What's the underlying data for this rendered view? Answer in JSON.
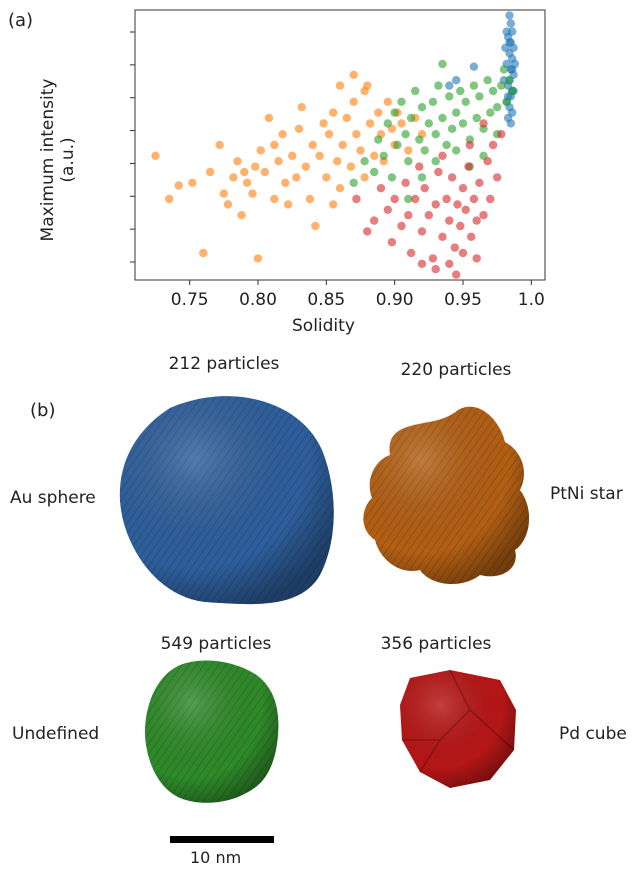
{
  "panel_a_label": "(a)",
  "panel_b_label": "(b)",
  "chart_data": {
    "type": "scatter",
    "xlabel": "Solidity",
    "ylabel": "Maximum intensity (a.u.)",
    "xlim": [
      0.71,
      1.01
    ],
    "ylim": [
      0,
      100
    ],
    "x_ticks": [
      "0.75",
      "0.80",
      "0.85",
      "0.90",
      "0.95",
      "1.0"
    ],
    "x_tick_values": [
      0.75,
      0.8,
      0.85,
      0.9,
      0.95,
      1.0
    ],
    "y_tick_count": 8,
    "y_tick_labels_shown": false,
    "grid": false,
    "series": [
      {
        "color": "#1f77b4",
        "points": [
          [
            0.984,
            98
          ],
          [
            0.985,
            95
          ],
          [
            0.986,
            92
          ],
          [
            0.983,
            90
          ],
          [
            0.985,
            88
          ],
          [
            0.987,
            86
          ],
          [
            0.984,
            84
          ],
          [
            0.986,
            82
          ],
          [
            0.982,
            80
          ],
          [
            0.985,
            78
          ],
          [
            0.987,
            76
          ],
          [
            0.984,
            74
          ],
          [
            0.983,
            72
          ],
          [
            0.986,
            70
          ],
          [
            0.985,
            68
          ],
          [
            0.982,
            66
          ],
          [
            0.984,
            64
          ],
          [
            0.986,
            62
          ],
          [
            0.983,
            60
          ],
          [
            0.985,
            58
          ],
          [
            0.981,
            86
          ],
          [
            0.988,
            80
          ],
          [
            0.98,
            74
          ],
          [
            0.987,
            70
          ],
          [
            0.982,
            92
          ],
          [
            0.984,
            88
          ],
          [
            0.986,
            78
          ],
          [
            0.983,
            68
          ],
          [
            0.958,
            79
          ],
          [
            0.945,
            74
          ],
          [
            0.94,
            72
          ]
        ]
      },
      {
        "color": "#ff7f0e",
        "points": [
          [
            0.725,
            46
          ],
          [
            0.735,
            30
          ],
          [
            0.742,
            35
          ],
          [
            0.752,
            36
          ],
          [
            0.76,
            10
          ],
          [
            0.765,
            40
          ],
          [
            0.772,
            50
          ],
          [
            0.775,
            32
          ],
          [
            0.778,
            28
          ],
          [
            0.782,
            38
          ],
          [
            0.785,
            44
          ],
          [
            0.788,
            24
          ],
          [
            0.79,
            40
          ],
          [
            0.792,
            36
          ],
          [
            0.796,
            32
          ],
          [
            0.8,
            8
          ],
          [
            0.802,
            48
          ],
          [
            0.805,
            40
          ],
          [
            0.808,
            60
          ],
          [
            0.812,
            30
          ],
          [
            0.815,
            44
          ],
          [
            0.818,
            54
          ],
          [
            0.82,
            36
          ],
          [
            0.822,
            28
          ],
          [
            0.825,
            46
          ],
          [
            0.828,
            38
          ],
          [
            0.83,
            56
          ],
          [
            0.832,
            64
          ],
          [
            0.835,
            42
          ],
          [
            0.838,
            30
          ],
          [
            0.84,
            50
          ],
          [
            0.842,
            20
          ],
          [
            0.845,
            46
          ],
          [
            0.848,
            58
          ],
          [
            0.85,
            38
          ],
          [
            0.852,
            54
          ],
          [
            0.855,
            62
          ],
          [
            0.858,
            44
          ],
          [
            0.86,
            34
          ],
          [
            0.862,
            50
          ],
          [
            0.865,
            60
          ],
          [
            0.868,
            42
          ],
          [
            0.87,
            66
          ],
          [
            0.872,
            54
          ],
          [
            0.875,
            48
          ],
          [
            0.878,
            38
          ],
          [
            0.88,
            72
          ],
          [
            0.882,
            58
          ],
          [
            0.885,
            46
          ],
          [
            0.888,
            62
          ],
          [
            0.89,
            54
          ],
          [
            0.892,
            44
          ],
          [
            0.895,
            66
          ],
          [
            0.898,
            56
          ],
          [
            0.9,
            50
          ],
          [
            0.902,
            62
          ],
          [
            0.905,
            58
          ],
          [
            0.91,
            48
          ],
          [
            0.915,
            60
          ],
          [
            0.92,
            54
          ],
          [
            0.87,
            76
          ],
          [
            0.878,
            70
          ],
          [
            0.86,
            72
          ],
          [
            0.855,
            28
          ],
          [
            0.798,
            42
          ],
          [
            0.812,
            50
          ]
        ]
      },
      {
        "color": "#2ca02c",
        "points": [
          [
            0.87,
            36
          ],
          [
            0.878,
            44
          ],
          [
            0.885,
            40
          ],
          [
            0.888,
            52
          ],
          [
            0.892,
            46
          ],
          [
            0.895,
            58
          ],
          [
            0.898,
            38
          ],
          [
            0.9,
            62
          ],
          [
            0.902,
            50
          ],
          [
            0.905,
            66
          ],
          [
            0.908,
            54
          ],
          [
            0.91,
            44
          ],
          [
            0.912,
            60
          ],
          [
            0.915,
            70
          ],
          [
            0.918,
            52
          ],
          [
            0.92,
            64
          ],
          [
            0.922,
            48
          ],
          [
            0.925,
            58
          ],
          [
            0.928,
            66
          ],
          [
            0.93,
            54
          ],
          [
            0.932,
            72
          ],
          [
            0.935,
            60
          ],
          [
            0.938,
            50
          ],
          [
            0.94,
            68
          ],
          [
            0.942,
            56
          ],
          [
            0.945,
            62
          ],
          [
            0.948,
            70
          ],
          [
            0.95,
            58
          ],
          [
            0.952,
            66
          ],
          [
            0.955,
            52
          ],
          [
            0.958,
            72
          ],
          [
            0.96,
            60
          ],
          [
            0.962,
            68
          ],
          [
            0.965,
            56
          ],
          [
            0.968,
            74
          ],
          [
            0.97,
            62
          ],
          [
            0.972,
            70
          ],
          [
            0.975,
            64
          ],
          [
            0.978,
            72
          ],
          [
            0.98,
            78
          ],
          [
            0.982,
            66
          ],
          [
            0.984,
            74
          ],
          [
            0.986,
            70
          ],
          [
            0.93,
            44
          ],
          [
            0.92,
            38
          ],
          [
            0.945,
            48
          ],
          [
            0.955,
            42
          ],
          [
            0.965,
            46
          ],
          [
            0.975,
            54
          ],
          [
            0.91,
            30
          ],
          [
            0.935,
            80
          ]
        ]
      },
      {
        "color": "#d62728",
        "points": [
          [
            0.872,
            30
          ],
          [
            0.88,
            18
          ],
          [
            0.885,
            22
          ],
          [
            0.89,
            34
          ],
          [
            0.895,
            26
          ],
          [
            0.898,
            14
          ],
          [
            0.9,
            30
          ],
          [
            0.905,
            20
          ],
          [
            0.908,
            36
          ],
          [
            0.91,
            24
          ],
          [
            0.912,
            10
          ],
          [
            0.915,
            30
          ],
          [
            0.918,
            42
          ],
          [
            0.92,
            18
          ],
          [
            0.922,
            34
          ],
          [
            0.925,
            24
          ],
          [
            0.928,
            8
          ],
          [
            0.93,
            28
          ],
          [
            0.932,
            40
          ],
          [
            0.935,
            16
          ],
          [
            0.938,
            30
          ],
          [
            0.94,
            22
          ],
          [
            0.942,
            38
          ],
          [
            0.944,
            12
          ],
          [
            0.946,
            28
          ],
          [
            0.948,
            20
          ],
          [
            0.95,
            34
          ],
          [
            0.952,
            26
          ],
          [
            0.954,
            42
          ],
          [
            0.956,
            16
          ],
          [
            0.958,
            30
          ],
          [
            0.96,
            22
          ],
          [
            0.962,
            36
          ],
          [
            0.965,
            24
          ],
          [
            0.968,
            44
          ],
          [
            0.97,
            30
          ],
          [
            0.972,
            50
          ],
          [
            0.975,
            38
          ],
          [
            0.978,
            54
          ],
          [
            0.93,
            4
          ],
          [
            0.94,
            6
          ],
          [
            0.95,
            10
          ],
          [
            0.96,
            8
          ],
          [
            0.92,
            6
          ],
          [
            0.945,
            2
          ],
          [
            0.935,
            46
          ],
          [
            0.955,
            50
          ],
          [
            0.965,
            58
          ]
        ]
      }
    ]
  },
  "panel_b": {
    "captions": {
      "count_1": "212 particles",
      "count_2": "220 particles",
      "count_3": "549 particles",
      "count_4": "356 particles"
    },
    "labels": {
      "l1": "Au sphere",
      "l2": "PtNi star",
      "l3": "Undefined",
      "l4": "Pd cube"
    },
    "colors": {
      "sphere": "#2e5f9c",
      "star": "#b35f14",
      "undefined": "#2f8a2a",
      "cube": "#b51616"
    },
    "scale_label": "10 nm"
  }
}
